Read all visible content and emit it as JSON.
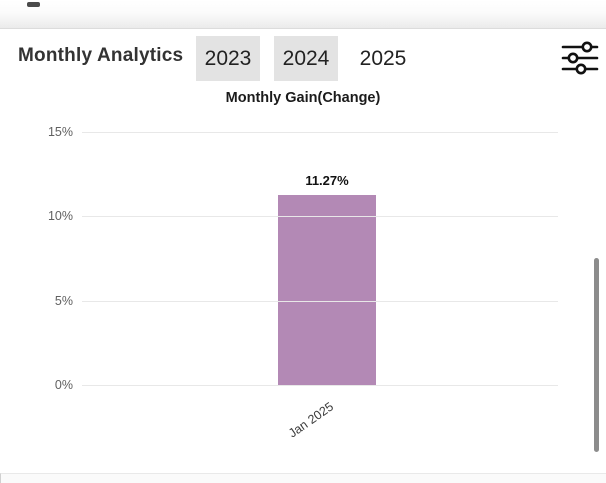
{
  "header": {
    "title": "Monthly Analytics",
    "year_tabs": [
      {
        "label": "2023",
        "highlighted": true
      },
      {
        "label": "2024",
        "highlighted": true
      },
      {
        "label": "2025",
        "highlighted": false
      }
    ]
  },
  "chart_data": {
    "type": "bar",
    "title": "Monthly Gain(Change)",
    "categories": [
      "Jan 2025"
    ],
    "values": [
      11.27
    ],
    "value_labels": [
      "11.27%"
    ],
    "ylim": [
      0,
      15
    ],
    "ytick_values": [
      0,
      5,
      10,
      15
    ],
    "ytick_labels": [
      "0%",
      "5%",
      "10%",
      "15%"
    ],
    "grid": "horizontal",
    "legend": "none",
    "bar_color": "#b389b5",
    "gridline_color": "#e8e8e8"
  },
  "colors": {
    "tab_highlight_bg": "#e3e3e3",
    "scrollbar_thumb": "#8c8c8c"
  }
}
